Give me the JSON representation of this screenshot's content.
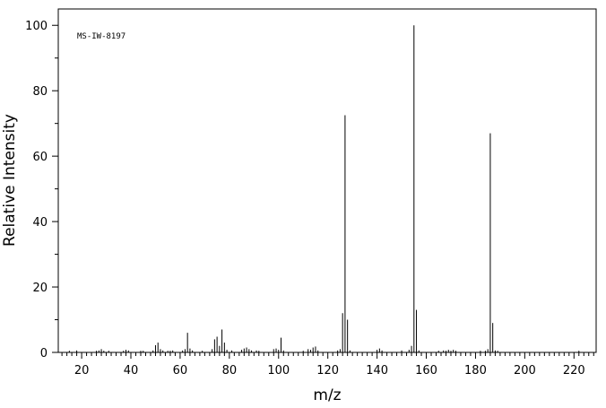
{
  "chart_data": {
    "type": "stem",
    "annotation": "MS-IW-8197",
    "x_label": "m/z",
    "y_label": "Relative Intensity",
    "color": "#000000",
    "xlim": [
      10.5,
      229
    ],
    "ylim": [
      0,
      105
    ],
    "xticks": [
      20,
      40,
      60,
      80,
      100,
      120,
      140,
      160,
      180,
      200,
      220
    ],
    "yticks": [
      0,
      20,
      40,
      60,
      80,
      100
    ],
    "xminorticks": [
      12,
      14,
      16,
      18,
      22,
      24,
      26,
      28,
      30,
      32,
      34,
      36,
      38,
      42,
      44,
      46,
      48,
      50,
      52,
      54,
      56,
      58,
      62,
      64,
      66,
      68,
      70,
      72,
      74,
      76,
      78,
      82,
      84,
      86,
      88,
      90,
      92,
      94,
      96,
      98,
      102,
      104,
      106,
      108,
      110,
      112,
      114,
      116,
      118,
      122,
      124,
      126,
      128,
      130,
      132,
      134,
      136,
      138,
      142,
      144,
      146,
      148,
      150,
      152,
      154,
      156,
      158,
      162,
      164,
      166,
      168,
      170,
      172,
      174,
      176,
      178,
      182,
      184,
      186,
      188,
      190,
      192,
      194,
      196,
      198,
      202,
      204,
      206,
      208,
      210,
      212,
      214,
      216,
      218,
      222,
      224,
      226,
      228
    ],
    "yminorticks": [
      10,
      30,
      50,
      70,
      90
    ],
    "x": [
      15,
      18,
      26,
      27,
      28,
      29,
      31,
      37,
      38,
      39,
      44,
      45,
      49,
      50,
      51,
      52,
      53,
      55,
      56,
      57,
      61,
      62,
      63,
      64,
      65,
      69,
      73,
      74,
      75,
      76,
      77,
      78,
      79,
      81,
      85,
      86,
      87,
      88,
      89,
      91,
      92,
      98,
      99,
      100,
      101,
      102,
      110,
      112,
      113,
      114,
      115,
      116,
      124,
      125,
      126,
      127,
      128,
      129,
      140,
      141,
      142,
      150,
      153,
      154,
      155,
      156,
      157,
      165,
      167,
      168,
      169,
      170,
      171,
      172,
      182,
      184,
      185,
      186,
      187,
      188,
      189,
      222
    ],
    "values": [
      0.5,
      0.6,
      0.5,
      0.6,
      1.0,
      0.5,
      0.5,
      0.5,
      0.8,
      0.6,
      0.5,
      0.5,
      0.6,
      2.2,
      3.0,
      1.0,
      0.6,
      0.5,
      0.5,
      0.6,
      0.6,
      1.0,
      6.0,
      1.2,
      0.6,
      0.5,
      1.0,
      4.0,
      4.8,
      2.0,
      7.0,
      3.0,
      0.8,
      0.6,
      0.8,
      1.2,
      1.5,
      1.0,
      0.6,
      0.6,
      0.5,
      1.0,
      1.2,
      0.8,
      4.5,
      0.6,
      0.5,
      1.0,
      0.8,
      1.5,
      1.8,
      0.6,
      0.6,
      1.0,
      12.0,
      72.5,
      10.0,
      0.6,
      0.8,
      1.2,
      0.6,
      0.6,
      0.8,
      2.0,
      100,
      13.0,
      0.6,
      0.5,
      0.6,
      0.5,
      0.8,
      0.5,
      0.8,
      0.5,
      0.5,
      0.5,
      1.0,
      67.0,
      9.0,
      0.6,
      0.5,
      0.5
    ]
  }
}
